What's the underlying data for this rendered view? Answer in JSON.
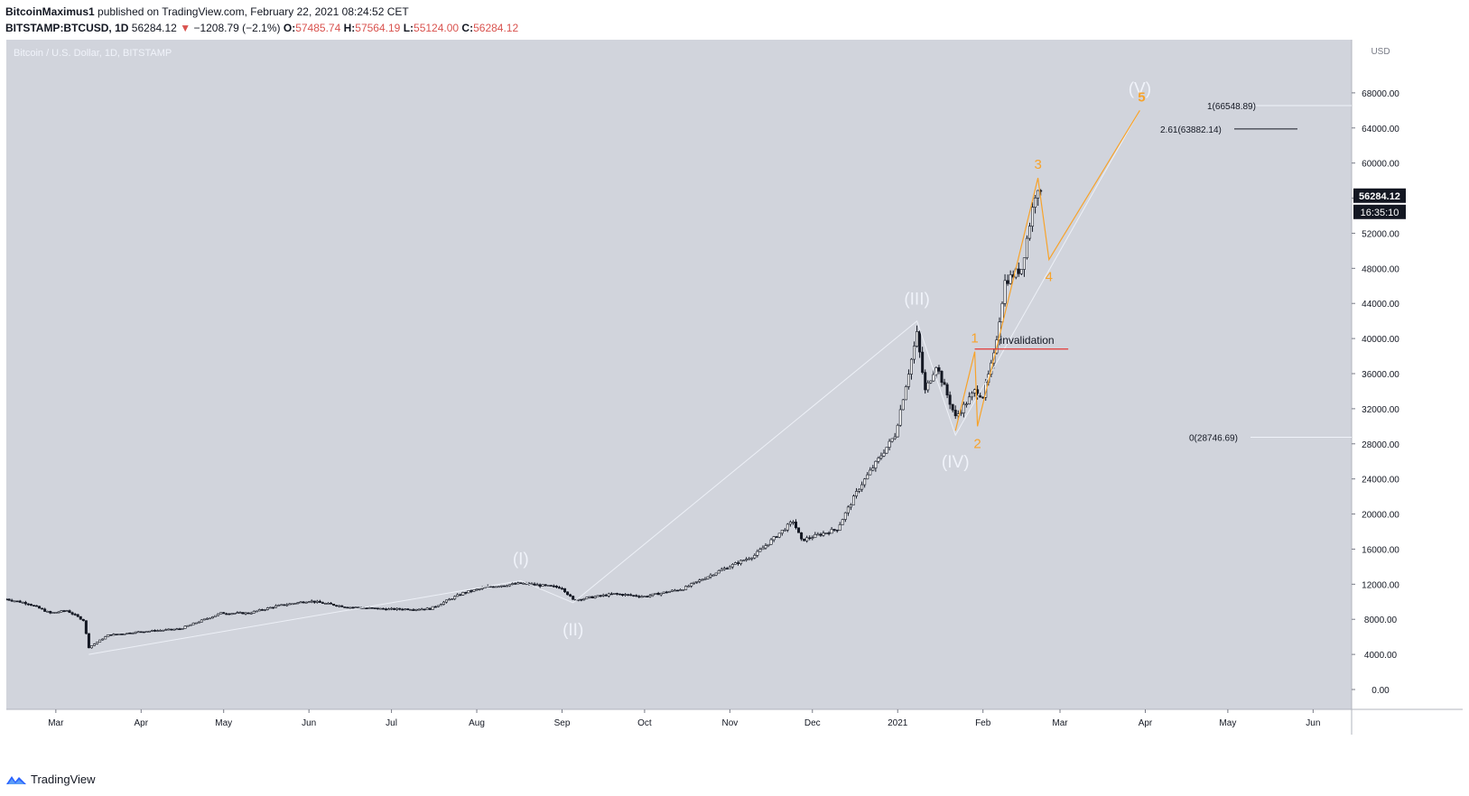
{
  "header": {
    "author": "BitcoinMaximus1",
    "published": "published on TradingView.com, February 22, 2021 08:24:52 CET",
    "symbol": "BITSTAMP:BTCUSD, 1D",
    "last": "56284.12",
    "change": "−1208.79 (−2.1%)",
    "o_label": "O:",
    "o": "57485.74",
    "h_label": "H:",
    "h": "57564.19",
    "l_label": "L:",
    "l": "55124.00",
    "c_label": "C:",
    "c": "56284.12"
  },
  "footer": {
    "brand": "TradingView"
  },
  "colors": {
    "plot_bg": "#d1d4dc",
    "candles": "#131722",
    "wave_white": "#f0f3fa",
    "wave_orange": "#f7a32b",
    "invalidation": "#e53935",
    "price_tag": "#131722"
  },
  "chart_data": {
    "type": "candlestick",
    "title": "Bitcoin / U.S. Dollar, 1D, BITSTAMP",
    "currency": "USD",
    "ylim": [
      0,
      72000
    ],
    "y_ticks": [
      "0.00",
      "4000.00",
      "8000.00",
      "12000.00",
      "16000.00",
      "20000.00",
      "24000.00",
      "28000.00",
      "32000.00",
      "36000.00",
      "40000.00",
      "44000.00",
      "48000.00",
      "52000.00",
      "56000.00",
      "60000.00",
      "64000.00",
      "68000.00"
    ],
    "x_ticks": [
      "Mar",
      "Apr",
      "May",
      "Jun",
      "Jul",
      "Aug",
      "Sep",
      "Oct",
      "Nov",
      "Dec",
      "2021",
      "Feb",
      "Mar",
      "Apr",
      "May",
      "Jun"
    ],
    "x_tick_dates": [
      "2020-03-01",
      "2020-04-01",
      "2020-05-01",
      "2020-06-01",
      "2020-07-01",
      "2020-08-01",
      "2020-09-01",
      "2020-10-01",
      "2020-11-01",
      "2020-12-01",
      "2021-01-01",
      "2021-02-01",
      "2021-03-01",
      "2021-04-01",
      "2021-05-01",
      "2021-06-01"
    ],
    "xlim": [
      "2020-02-12",
      "2021-06-15"
    ],
    "price_path": [
      [
        "2020-02-12",
        10300
      ],
      [
        "2020-02-20",
        9800
      ],
      [
        "2020-02-28",
        8700
      ],
      [
        "2020-03-05",
        9000
      ],
      [
        "2020-03-11",
        7900
      ],
      [
        "2020-03-13",
        4800
      ],
      [
        "2020-03-20",
        6200
      ],
      [
        "2020-04-01",
        6600
      ],
      [
        "2020-04-15",
        6900
      ],
      [
        "2020-04-30",
        8700
      ],
      [
        "2020-05-10",
        8700
      ],
      [
        "2020-05-20",
        9500
      ],
      [
        "2020-06-01",
        10100
      ],
      [
        "2020-06-15",
        9400
      ],
      [
        "2020-06-30",
        9150
      ],
      [
        "2020-07-15",
        9200
      ],
      [
        "2020-07-27",
        11000
      ],
      [
        "2020-08-05",
        11700
      ],
      [
        "2020-08-17",
        12100
      ],
      [
        "2020-09-01",
        11600
      ],
      [
        "2020-09-05",
        10200
      ],
      [
        "2020-09-20",
        10900
      ],
      [
        "2020-10-01",
        10600
      ],
      [
        "2020-10-15",
        11500
      ],
      [
        "2020-10-28",
        13500
      ],
      [
        "2020-11-10",
        15300
      ],
      [
        "2020-11-24",
        19200
      ],
      [
        "2020-11-27",
        17000
      ],
      [
        "2020-12-10",
        18300
      ],
      [
        "2020-12-18",
        23000
      ],
      [
        "2020-12-31",
        29000
      ],
      [
        "2021-01-08",
        40500
      ],
      [
        "2021-01-11",
        34000
      ],
      [
        "2021-01-15",
        37000
      ],
      [
        "2021-01-22",
        31000
      ],
      [
        "2021-01-29",
        34000
      ],
      [
        "2021-02-01",
        33500
      ],
      [
        "2021-02-05",
        38000
      ],
      [
        "2021-02-09",
        46500
      ],
      [
        "2021-02-15",
        48000
      ],
      [
        "2021-02-20",
        56500
      ],
      [
        "2021-02-21",
        57400
      ],
      [
        "2021-02-22",
        56284
      ]
    ],
    "last_price": "56284.12",
    "countdown": "16:35:10",
    "fib_levels": [
      {
        "label": "1(66548.89)",
        "price": 66548.89
      },
      {
        "label": "2.61(63882.14)",
        "price": 63882.14
      },
      {
        "label": "0(28746.69)",
        "price": 28746.69
      }
    ],
    "invalidation": {
      "label": "invalidation",
      "price": 38800
    },
    "white_waves": [
      {
        "label": "(I)",
        "date": "2020-08-17",
        "price": 12400
      },
      {
        "label": "(II)",
        "date": "2020-09-05",
        "price": 9900
      },
      {
        "label": "(III)",
        "date": "2021-01-08",
        "price": 42000
      },
      {
        "label": "(IV)",
        "date": "2021-01-22",
        "price": 29000
      },
      {
        "label": "(V)",
        "date": "2021-03-30",
        "price": 66000
      }
    ],
    "orange_waves": [
      {
        "label": "1",
        "date": "2021-01-29",
        "price": 38500
      },
      {
        "label": "2",
        "date": "2021-01-30",
        "price": 30000
      },
      {
        "label": "3",
        "date": "2021-02-21",
        "price": 58300
      },
      {
        "label": "4",
        "date": "2021-02-25",
        "price": 49000
      },
      {
        "label": "5",
        "date": "2021-03-30",
        "price": 66000
      }
    ]
  }
}
